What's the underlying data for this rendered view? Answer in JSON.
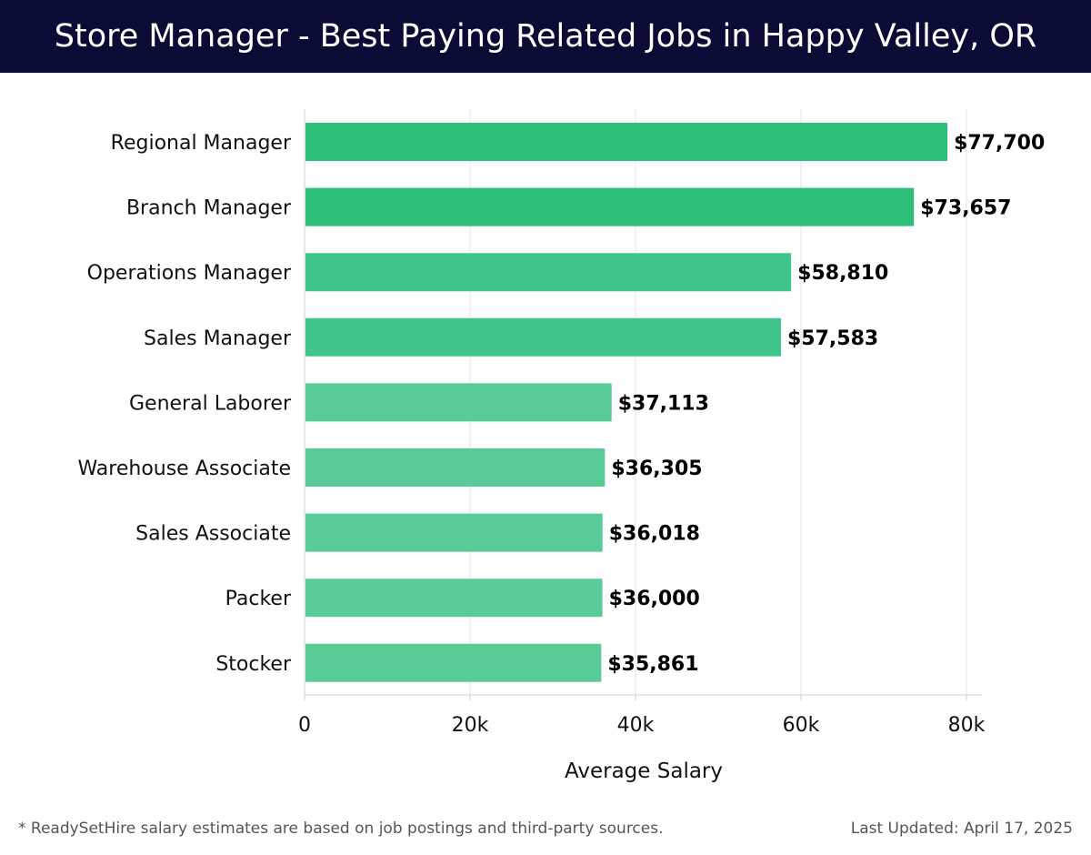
{
  "header": {
    "title": "Store Manager - Best Paying Related Jobs in Happy Valley, OR"
  },
  "chart_data": {
    "type": "bar",
    "orientation": "horizontal",
    "categories": [
      "Regional Manager",
      "Branch Manager",
      "Operations Manager",
      "Sales Manager",
      "General Laborer",
      "Warehouse Associate",
      "Sales Associate",
      "Packer",
      "Stocker"
    ],
    "values": [
      77700,
      73657,
      58810,
      57583,
      37113,
      36305,
      36018,
      36000,
      35861
    ],
    "value_labels": [
      "$77,700",
      "$73,657",
      "$58,810",
      "$57,583",
      "$37,113",
      "$36,305",
      "$36,018",
      "$36,000",
      "$35,861"
    ],
    "bar_colors": [
      "#2dbf79",
      "#2dbf79",
      "#3fc489",
      "#3fc489",
      "#58cc97",
      "#58cc97",
      "#58cc97",
      "#58cc97",
      "#58cc97"
    ],
    "xlabel": "Average Salary",
    "ylabel": "",
    "xlim": [
      0,
      80000
    ],
    "xticks": [
      0,
      20000,
      40000,
      60000,
      80000
    ],
    "xtick_labels": [
      "0",
      "20k",
      "40k",
      "60k",
      "80k"
    ],
    "grid": "vertical"
  },
  "footer": {
    "note": "* ReadySetHire salary estimates are based on job postings and third-party sources.",
    "updated": "Last Updated: April 17, 2025"
  }
}
